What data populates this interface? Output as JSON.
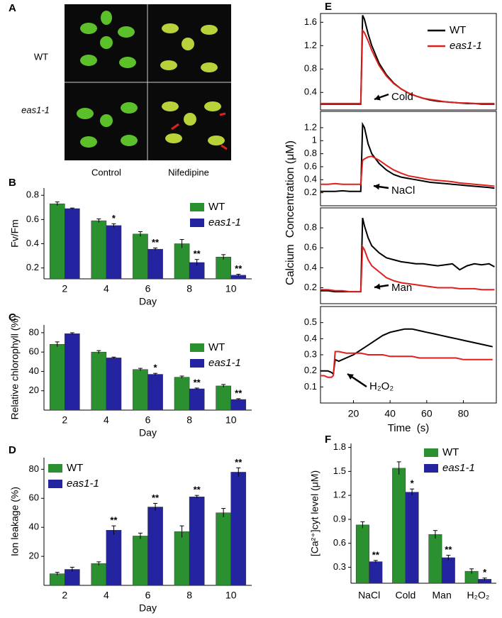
{
  "panel_a": {
    "letter": "A",
    "rows": [
      "WT",
      "eas1-1"
    ],
    "columns": [
      "Control",
      "Nifedipine"
    ]
  },
  "chart_data": [
    {
      "type": "bar",
      "letter": "B",
      "ylabel": "Fv/Fm",
      "xlabel": "Day",
      "categories": [
        "2",
        "4",
        "6",
        "8",
        "10"
      ],
      "ylim": [
        0.11,
        0.86
      ],
      "yticks": [
        0.2,
        0.4,
        0.6,
        0.8
      ],
      "series": [
        {
          "name": "WT",
          "color": "#2a9030",
          "values": [
            0.73,
            0.59,
            0.48,
            0.4,
            0.29
          ],
          "errors": [
            0.015,
            0.015,
            0.02,
            0.035,
            0.02
          ]
        },
        {
          "name": "eas1-1",
          "color": "#2424a0",
          "values": [
            0.69,
            0.55,
            0.355,
            0.245,
            0.14
          ],
          "errors": [
            0.005,
            0.015,
            0.01,
            0.025,
            0.008
          ],
          "annotations": [
            null,
            "*",
            "**",
            "**",
            "**"
          ]
        }
      ]
    },
    {
      "type": "bar",
      "letter": "C",
      "ylabel": "Relative chlorophyll (%)",
      "xlabel": "Day",
      "categories": [
        "2",
        "4",
        "6",
        "8",
        "10"
      ],
      "ylim": [
        0,
        88
      ],
      "yticks": [
        20,
        40,
        60,
        80
      ],
      "series": [
        {
          "name": "WT",
          "color": "#2a9030",
          "values": [
            68,
            60,
            42,
            34,
            25
          ],
          "errors": [
            2.5,
            1.5,
            1.2,
            1.2,
            1.5
          ]
        },
        {
          "name": "eas1-1",
          "color": "#2424a0",
          "values": [
            79,
            54,
            37,
            22,
            11
          ],
          "errors": [
            1,
            0.8,
            1,
            0.8,
            0.8
          ],
          "annotations": [
            null,
            null,
            "*",
            "**",
            "**"
          ]
        }
      ]
    },
    {
      "type": "bar",
      "letter": "D",
      "ylabel": "Ion leakage (%)",
      "xlabel": "Day",
      "categories": [
        "2",
        "4",
        "6",
        "8",
        "10"
      ],
      "ylim": [
        0,
        88
      ],
      "yticks": [
        20,
        40,
        60,
        80
      ],
      "series": [
        {
          "name": "WT",
          "color": "#2a9030",
          "values": [
            8,
            15,
            34,
            37,
            50
          ],
          "errors": [
            1,
            1.2,
            2,
            4,
            3
          ]
        },
        {
          "name": "eas1-1",
          "color": "#2424a0",
          "values": [
            11,
            38,
            54,
            61,
            78
          ],
          "errors": [
            1.5,
            3,
            2.5,
            1,
            3
          ],
          "annotations": [
            null,
            "**",
            "**",
            "**",
            "**"
          ]
        }
      ]
    },
    {
      "type": "line",
      "letter": "E",
      "ylabel": "Calcium  Concentration (μM)",
      "xlabel": "Time  (s)",
      "xlim": [
        2,
        98
      ],
      "xticks": [
        20,
        40,
        60,
        80
      ],
      "series": [
        {
          "name": "WT",
          "color": "#000000"
        },
        {
          "name": "eas1-1",
          "color": "#e0201c"
        }
      ],
      "subplots": [
        {
          "annotation": "Cold",
          "ylim": [
            0.1,
            1.75
          ],
          "yticks": [
            0.4,
            0.8,
            1.2,
            1.6
          ],
          "x": [
            2,
            6,
            10,
            14,
            18,
            22,
            24,
            25,
            26,
            28,
            30,
            34,
            38,
            42,
            46,
            50,
            54,
            58,
            62,
            66,
            70,
            74,
            78,
            82,
            86,
            90,
            94,
            97
          ],
          "series": [
            {
              "values": [
                0.2,
                0.2,
                0.2,
                0.2,
                0.2,
                0.2,
                0.2,
                1.72,
                1.65,
                1.4,
                1.2,
                0.9,
                0.7,
                0.56,
                0.46,
                0.39,
                0.34,
                0.3,
                0.27,
                0.25,
                0.24,
                0.23,
                0.22,
                0.21,
                0.21,
                0.2,
                0.2,
                0.2
              ]
            },
            {
              "values": [
                0.21,
                0.21,
                0.21,
                0.21,
                0.21,
                0.21,
                0.21,
                1.46,
                1.42,
                1.28,
                1.12,
                0.86,
                0.68,
                0.55,
                0.46,
                0.39,
                0.34,
                0.3,
                0.28,
                0.26,
                0.24,
                0.23,
                0.22,
                0.22,
                0.21,
                0.21,
                0.21,
                0.21
              ]
            }
          ]
        },
        {
          "annotation": "NaCl",
          "ylim": [
            0,
            1.45
          ],
          "yticks": [
            0.2,
            0.4,
            0.6,
            0.8,
            1.0,
            1.2
          ],
          "x": [
            2,
            6,
            10,
            14,
            18,
            22,
            24,
            25,
            26,
            28,
            30,
            34,
            38,
            42,
            46,
            50,
            54,
            58,
            62,
            66,
            70,
            74,
            78,
            82,
            86,
            90,
            94,
            97
          ],
          "series": [
            {
              "values": [
                0.22,
                0.22,
                0.22,
                0.23,
                0.22,
                0.22,
                0.22,
                1.25,
                1.2,
                0.95,
                0.8,
                0.65,
                0.55,
                0.48,
                0.44,
                0.42,
                0.4,
                0.38,
                0.36,
                0.35,
                0.34,
                0.33,
                0.32,
                0.31,
                0.3,
                0.29,
                0.28,
                0.27
              ]
            },
            {
              "values": [
                0.33,
                0.33,
                0.34,
                0.33,
                0.33,
                0.33,
                0.33,
                0.7,
                0.72,
                0.75,
                0.76,
                0.7,
                0.62,
                0.55,
                0.5,
                0.46,
                0.44,
                0.42,
                0.4,
                0.39,
                0.38,
                0.37,
                0.35,
                0.34,
                0.33,
                0.32,
                0.31,
                0.3
              ]
            }
          ]
        },
        {
          "annotation": "Man",
          "ylim": [
            0.04,
            1.0
          ],
          "yticks": [
            0.2,
            0.4,
            0.6,
            0.8
          ],
          "x": [
            2,
            6,
            10,
            14,
            18,
            22,
            24,
            25,
            26,
            28,
            30,
            34,
            38,
            42,
            46,
            50,
            54,
            58,
            62,
            66,
            70,
            74,
            78,
            82,
            86,
            90,
            94,
            97
          ],
          "series": [
            {
              "values": [
                0.17,
                0.17,
                0.16,
                0.16,
                0.16,
                0.16,
                0.16,
                0.9,
                0.82,
                0.7,
                0.62,
                0.55,
                0.5,
                0.48,
                0.46,
                0.45,
                0.44,
                0.44,
                0.43,
                0.42,
                0.43,
                0.44,
                0.38,
                0.42,
                0.44,
                0.43,
                0.44,
                0.41
              ]
            },
            {
              "values": [
                0.18,
                0.18,
                0.17,
                0.17,
                0.16,
                0.16,
                0.16,
                0.61,
                0.58,
                0.48,
                0.42,
                0.36,
                0.3,
                0.27,
                0.25,
                0.24,
                0.23,
                0.22,
                0.21,
                0.2,
                0.2,
                0.2,
                0.19,
                0.19,
                0.19,
                0.18,
                0.18,
                0.18
              ]
            }
          ]
        },
        {
          "annotation": "H₂O₂",
          "ylim": [
            0,
            0.6
          ],
          "yticks": [
            0.1,
            0.2,
            0.3,
            0.4,
            0.5
          ],
          "x": [
            2,
            4,
            6,
            8,
            9,
            10,
            12,
            16,
            20,
            24,
            28,
            32,
            36,
            40,
            44,
            48,
            52,
            56,
            60,
            64,
            68,
            72,
            76,
            80,
            84,
            88,
            92,
            96
          ],
          "series": [
            {
              "values": [
                0.2,
                0.2,
                0.2,
                0.19,
                0.18,
                0.27,
                0.26,
                0.28,
                0.3,
                0.33,
                0.36,
                0.39,
                0.42,
                0.44,
                0.45,
                0.46,
                0.46,
                0.45,
                0.44,
                0.43,
                0.42,
                0.41,
                0.4,
                0.39,
                0.38,
                0.37,
                0.36,
                0.35
              ]
            },
            {
              "values": [
                0.17,
                0.17,
                0.16,
                0.16,
                0.17,
                0.32,
                0.32,
                0.31,
                0.31,
                0.31,
                0.3,
                0.3,
                0.3,
                0.29,
                0.29,
                0.29,
                0.29,
                0.28,
                0.28,
                0.28,
                0.28,
                0.28,
                0.28,
                0.27,
                0.27,
                0.27,
                0.27,
                0.27
              ]
            }
          ]
        }
      ]
    },
    {
      "type": "bar",
      "letter": "F",
      "ylabel": "[Ca²⁺]cyt level (μM)",
      "categories": [
        "NaCl",
        "Cold",
        "Man",
        "H₂O₂"
      ],
      "ylim": [
        0.1,
        1.85
      ],
      "yticks": [
        0.3,
        0.6,
        0.9,
        1.2,
        1.5,
        1.8
      ],
      "series": [
        {
          "name": "WT",
          "color": "#2a9030",
          "values": [
            0.83,
            1.54,
            0.71,
            0.25
          ],
          "errors": [
            0.04,
            0.08,
            0.05,
            0.03
          ]
        },
        {
          "name": "eas1-1",
          "color": "#2424a0",
          "values": [
            0.37,
            1.24,
            0.42,
            0.15
          ],
          "errors": [
            0.015,
            0.04,
            0.03,
            0.015
          ],
          "annotations": [
            "**",
            "*",
            "**",
            "*"
          ]
        }
      ]
    }
  ]
}
